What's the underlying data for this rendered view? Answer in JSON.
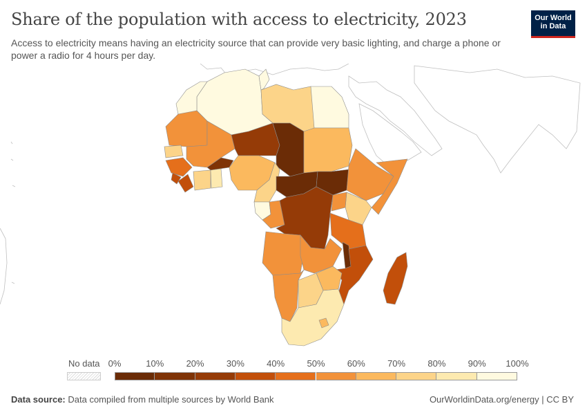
{
  "header": {
    "title": "Share of the population with access to electricity, 2023",
    "subtitle": "Access to electricity means having an electricity source that can provide very basic lighting, and charge a phone or power a radio for 4 hours per day."
  },
  "logo": {
    "line1": "Our World",
    "line2": "in Data"
  },
  "legend": {
    "no_data_label": "No data",
    "ticks": [
      "0%",
      "10%",
      "20%",
      "30%",
      "40%",
      "50%",
      "60%",
      "70%",
      "80%",
      "90%",
      "100%"
    ],
    "bin_colors": [
      "#6b2c06",
      "#7f3306",
      "#953b07",
      "#c24f0a",
      "#e56f1b",
      "#f2923a",
      "#fbb95e",
      "#fcd489",
      "#fdeab0",
      "#fffae0"
    ]
  },
  "footer": {
    "source_label": "Data source:",
    "source_text": "Data compiled from multiple sources by World Bank",
    "right_text": "OurWorldinData.org/energy | CC BY"
  },
  "colors": {
    "border": "#b4b4b4",
    "land_outline": "#8c8c8c"
  }
}
